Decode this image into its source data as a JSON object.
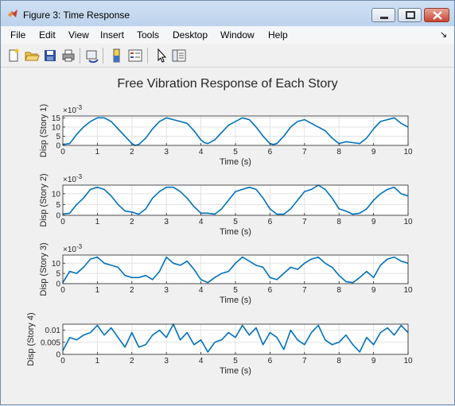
{
  "window": {
    "title": "Figure 3: Time Response",
    "accent": "#bcd3ec"
  },
  "menu": [
    "File",
    "Edit",
    "View",
    "Insert",
    "Tools",
    "Desktop",
    "Window",
    "Help"
  ],
  "toolbar": {
    "icons": [
      "new-figure-icon",
      "open-file-icon",
      "save-icon",
      "print-icon",
      "link-plot-icon",
      "insert-colorbar-icon",
      "insert-legend-icon",
      "edit-plot-icon",
      "property-inspector-icon"
    ]
  },
  "figure": {
    "suptitle": "Free Vibration Response of Each Story",
    "line_color": "#0072bd"
  },
  "chart_data": [
    {
      "type": "line",
      "title": "",
      "xlabel": "Time (s)",
      "ylabel": "Disp (Story 1)",
      "exponent_label": "×10",
      "exponent_sup": "-3",
      "xlim": [
        0,
        10
      ],
      "ylim": [
        0,
        16
      ],
      "xticks": [
        "0",
        "1",
        "2",
        "3",
        "4",
        "5",
        "6",
        "7",
        "8",
        "9",
        "10"
      ],
      "yticks": [
        {
          "v": 0,
          "label": "0"
        },
        {
          "v": 5,
          "label": "5"
        },
        {
          "v": 10,
          "label": "10"
        },
        {
          "v": 15,
          "label": "15"
        }
      ],
      "grid": true,
      "x": [
        0,
        0.2,
        0.4,
        0.6,
        0.8,
        1.0,
        1.2,
        1.4,
        1.6,
        1.8,
        2.0,
        2.1,
        2.2,
        2.4,
        2.6,
        2.8,
        3.0,
        3.2,
        3.4,
        3.6,
        3.8,
        4.0,
        4.1,
        4.2,
        4.4,
        4.6,
        4.8,
        5.0,
        5.2,
        5.4,
        5.6,
        5.8,
        6.0,
        6.1,
        6.2,
        6.4,
        6.6,
        6.8,
        7.0,
        7.2,
        7.4,
        7.6,
        7.8,
        8.0,
        8.2,
        8.4,
        8.6,
        8.8,
        9.0,
        9.2,
        9.4,
        9.6,
        9.8,
        10.0
      ],
      "values": [
        0.5,
        1,
        6,
        10,
        13,
        15,
        15,
        13,
        9,
        5,
        1,
        0,
        0.5,
        4,
        9,
        13,
        15,
        14,
        13,
        12,
        8,
        3,
        1.5,
        1,
        3,
        7,
        11,
        13,
        15,
        14,
        10,
        5,
        1,
        0.5,
        1,
        5,
        10,
        13,
        14,
        12,
        10,
        8,
        4,
        1,
        2,
        1.5,
        1,
        4,
        9,
        13,
        14,
        15,
        12,
        10
      ]
    },
    {
      "type": "line",
      "title": "",
      "xlabel": "Time (s)",
      "ylabel": "Disp (Story 2)",
      "exponent_label": "×10",
      "exponent_sup": "-3",
      "xlim": [
        0,
        10
      ],
      "ylim": [
        0,
        14
      ],
      "xticks": [
        "0",
        "1",
        "2",
        "3",
        "4",
        "5",
        "6",
        "7",
        "8",
        "9",
        "10"
      ],
      "yticks": [
        {
          "v": 0,
          "label": "0"
        },
        {
          "v": 5,
          "label": "5"
        },
        {
          "v": 10,
          "label": "10"
        }
      ],
      "grid": true,
      "x": [
        0,
        0.2,
        0.4,
        0.6,
        0.8,
        1.0,
        1.2,
        1.4,
        1.6,
        1.8,
        2.0,
        2.2,
        2.4,
        2.6,
        2.8,
        3.0,
        3.2,
        3.4,
        3.6,
        3.8,
        4.0,
        4.2,
        4.4,
        4.6,
        4.8,
        5.0,
        5.2,
        5.4,
        5.6,
        5.8,
        6.0,
        6.2,
        6.4,
        6.6,
        6.8,
        7.0,
        7.2,
        7.4,
        7.6,
        7.8,
        8.0,
        8.2,
        8.4,
        8.6,
        8.8,
        9.0,
        9.2,
        9.4,
        9.6,
        9.8,
        10.0
      ],
      "values": [
        0.5,
        1,
        5,
        8,
        12,
        13,
        12,
        9,
        5,
        2,
        1.5,
        0.5,
        3,
        8,
        11,
        13,
        13,
        11,
        8,
        4,
        1,
        1,
        0.5,
        3,
        7,
        11,
        12,
        13,
        12,
        8,
        3,
        0.5,
        0.5,
        3,
        7,
        11,
        12,
        14,
        12,
        8,
        3,
        2,
        0.5,
        1,
        3,
        7,
        10,
        12,
        13,
        10,
        9
      ]
    },
    {
      "type": "line",
      "title": "",
      "xlabel": "Time (s)",
      "ylabel": "Disp (Story 3)",
      "exponent_label": "×10",
      "exponent_sup": "-3",
      "xlim": [
        0,
        10
      ],
      "ylim": [
        0,
        14
      ],
      "xticks": [
        "0",
        "1",
        "2",
        "3",
        "4",
        "5",
        "6",
        "7",
        "8",
        "9",
        "10"
      ],
      "yticks": [
        {
          "v": 0,
          "label": "0"
        },
        {
          "v": 5,
          "label": "5"
        },
        {
          "v": 10,
          "label": "10"
        }
      ],
      "grid": true,
      "x": [
        0,
        0.2,
        0.4,
        0.6,
        0.8,
        1.0,
        1.2,
        1.4,
        1.6,
        1.8,
        2.0,
        2.2,
        2.4,
        2.6,
        2.8,
        3.0,
        3.2,
        3.4,
        3.6,
        3.8,
        4.0,
        4.2,
        4.4,
        4.6,
        4.8,
        5.0,
        5.2,
        5.4,
        5.6,
        5.8,
        6.0,
        6.2,
        6.4,
        6.6,
        6.8,
        7.0,
        7.2,
        7.4,
        7.6,
        7.8,
        8.0,
        8.2,
        8.4,
        8.6,
        8.8,
        9.0,
        9.2,
        9.4,
        9.6,
        9.8,
        10.0
      ],
      "values": [
        0.5,
        6,
        5,
        8,
        12,
        13,
        10,
        9,
        8,
        4,
        3,
        3,
        4,
        2,
        6,
        13,
        10,
        9,
        11,
        7,
        2,
        0.5,
        3,
        5,
        6,
        10,
        13,
        11,
        9,
        8,
        3,
        2,
        5,
        8,
        7,
        10,
        12,
        13,
        10,
        8,
        4,
        1,
        0.5,
        3,
        6,
        3,
        9,
        12,
        13,
        11,
        10
      ]
    },
    {
      "type": "line",
      "title": "",
      "xlabel": "Time (s)",
      "ylabel": "Disp (Story 4)",
      "exponent_label": "",
      "exponent_sup": "",
      "xlim": [
        0,
        10
      ],
      "ylim": [
        0,
        0.0125
      ],
      "xticks": [
        "0",
        "1",
        "2",
        "3",
        "4",
        "5",
        "6",
        "7",
        "8",
        "9",
        "10"
      ],
      "yticks": [
        {
          "v": 0,
          "label": "0"
        },
        {
          "v": 0.005,
          "label": "0.005"
        },
        {
          "v": 0.01,
          "label": "0.01"
        }
      ],
      "grid": true,
      "x": [
        0,
        0.2,
        0.4,
        0.6,
        0.8,
        1.0,
        1.2,
        1.4,
        1.6,
        1.8,
        2.0,
        2.2,
        2.4,
        2.6,
        2.8,
        3.0,
        3.2,
        3.4,
        3.6,
        3.8,
        4.0,
        4.2,
        4.4,
        4.6,
        4.8,
        5.0,
        5.2,
        5.4,
        5.6,
        5.8,
        6.0,
        6.2,
        6.4,
        6.6,
        6.8,
        7.0,
        7.2,
        7.4,
        7.6,
        7.8,
        8.0,
        8.2,
        8.4,
        8.6,
        8.8,
        9.0,
        9.2,
        9.4,
        9.6,
        9.8,
        10.0
      ],
      "values": [
        0.0015,
        0.007,
        0.006,
        0.008,
        0.009,
        0.012,
        0.008,
        0.011,
        0.007,
        0.003,
        0.009,
        0.003,
        0.004,
        0.008,
        0.01,
        0.007,
        0.0125,
        0.006,
        0.009,
        0.004,
        0.006,
        0.001,
        0.005,
        0.006,
        0.009,
        0.007,
        0.012,
        0.008,
        0.011,
        0.004,
        0.009,
        0.007,
        0.002,
        0.01,
        0.006,
        0.004,
        0.009,
        0.012,
        0.006,
        0.004,
        0.005,
        0.008,
        0.004,
        0.001,
        0.007,
        0.004,
        0.009,
        0.011,
        0.008,
        0.012,
        0.009
      ]
    }
  ]
}
